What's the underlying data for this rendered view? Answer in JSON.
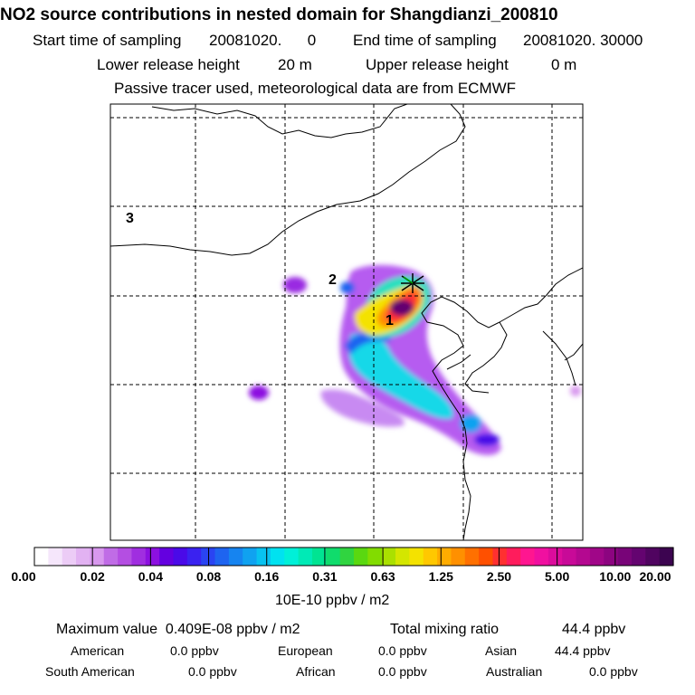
{
  "title": "NO2 source contributions in nested domain for Shangdianzi_200810",
  "sampling": {
    "start_label": "Start time of sampling",
    "start_value": "20081020.      0",
    "end_label": "End time of sampling",
    "end_value": "20081020. 30000"
  },
  "release": {
    "lower_label": "Lower release height",
    "lower_value": "20 m",
    "upper_label": "Upper release height",
    "upper_value": "0 m"
  },
  "note": "Passive tracer used, meteorological data are from ECMWF",
  "map_labels": {
    "label_1": "1",
    "label_2": "2",
    "label_3": "3"
  },
  "colorbar": {
    "ticks": [
      "0.00",
      "0.02",
      "0.04",
      "0.08",
      "0.16",
      "0.31",
      "0.63",
      "1.25",
      "2.50",
      "5.00",
      "10.00",
      "20.00"
    ],
    "colors": [
      "#ffffff",
      "#f5e6fb",
      "#ecccf6",
      "#e2b2f2",
      "#d898ee",
      "#c06ce6",
      "#b44ee2",
      "#a02ee0",
      "#8c10e0",
      "#6400e0",
      "#4a0ae8",
      "#3a22f0",
      "#2a44f2",
      "#1e64f0",
      "#1684f0",
      "#10a2f0",
      "#08c2f0",
      "#00e2f0",
      "#00f0d8",
      "#00eab6",
      "#00e492",
      "#10dc6c",
      "#30d440",
      "#5ad810",
      "#82dc00",
      "#aae000",
      "#d4e600",
      "#f4e200",
      "#ffc800",
      "#ffac00",
      "#ff9000",
      "#ff7000",
      "#ff5000",
      "#ff3030",
      "#ff1c5c",
      "#ff1690",
      "#f010a0",
      "#dc0c9c",
      "#c80a98",
      "#b40890",
      "#a00688",
      "#8c0480",
      "#780478",
      "#640470",
      "#500460",
      "#3c0450"
    ],
    "unit": "10E-10 ppbv / m2"
  },
  "stats": {
    "max_label": "Maximum value",
    "max_value": "0.409E-08 ppbv / m2",
    "total_label": "Total mixing ratio",
    "total_value": "44.4 ppbv"
  },
  "regions": [
    {
      "name": "American",
      "value": "0.0 ppbv"
    },
    {
      "name": "European",
      "value": "0.0 ppbv"
    },
    {
      "name": "Asian",
      "value": "44.4 ppbv"
    },
    {
      "name": "South American",
      "value": "0.0 ppbv"
    },
    {
      "name": "African",
      "value": "0.0 ppbv"
    },
    {
      "name": "Australian",
      "value": "0.0 ppbv"
    }
  ]
}
